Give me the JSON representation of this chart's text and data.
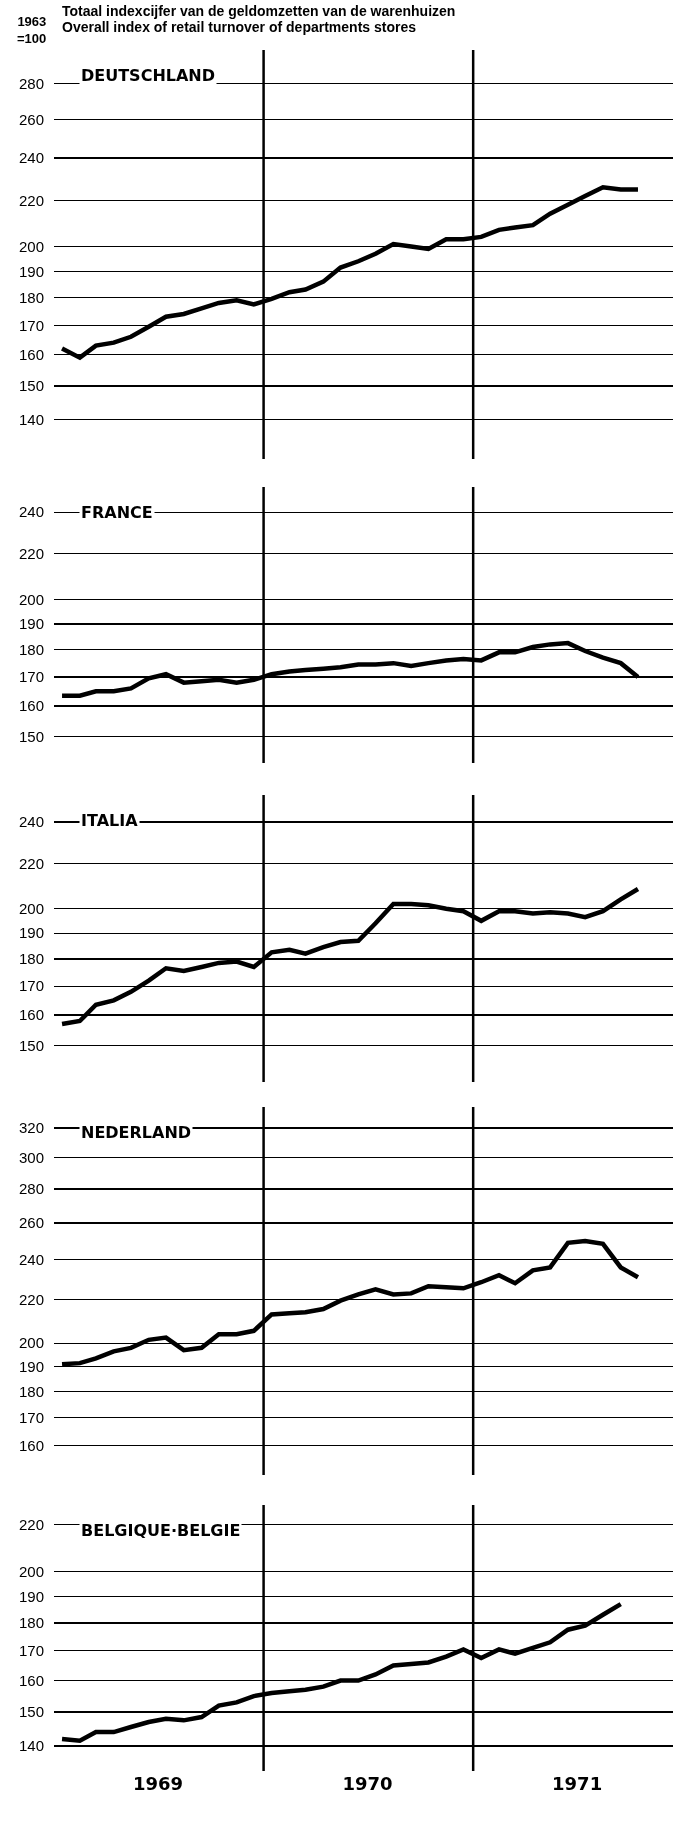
{
  "chart_data": [
    {
      "type": "line",
      "title": "DEUTSCHLAND",
      "ylabel": "1963\n=100",
      "annotations": [
        "Totaal indexcijfer van de geldomzetten van de warenhuizen",
        "Overall index of retail turnover of departments stores"
      ],
      "color": "#000000",
      "log": true,
      "grid": "y",
      "tick_labels": "y",
      "xlim": [
        "1969-01-01",
        "1971-12-15"
      ],
      "ylim": [
        129,
        300
      ],
      "yticks": [
        140,
        150,
        160,
        170,
        180,
        190,
        200,
        220,
        240,
        260,
        280
      ],
      "ref_lines": [
        {
          "axis": "x",
          "value": "1970-01-01"
        },
        {
          "axis": "x",
          "value": "1971-01-01"
        }
      ],
      "x": [
        "1969-01-15",
        "1969-02-15",
        "1969-03-15",
        "1969-04-15",
        "1969-05-15",
        "1969-06-15",
        "1969-07-15",
        "1969-08-15",
        "1969-09-15",
        "1969-10-15",
        "1969-11-15",
        "1969-12-15",
        "1970-01-15",
        "1970-02-15",
        "1970-03-15",
        "1970-04-15",
        "1970-05-15",
        "1970-06-15",
        "1970-07-15",
        "1970-08-15",
        "1970-09-15",
        "1970-10-15",
        "1970-11-15",
        "1970-12-15",
        "1971-01-15",
        "1971-02-15",
        "1971-03-15",
        "1971-04-15",
        "1971-05-15",
        "1971-06-15",
        "1971-07-15",
        "1971-08-15",
        "1971-09-15",
        "1971-10-15"
      ],
      "values": [
        162,
        159,
        163,
        164,
        166,
        169.5,
        173,
        174,
        176,
        178,
        179,
        177.5,
        179.5,
        182,
        183,
        186,
        191.5,
        194,
        197,
        201,
        200,
        199,
        203,
        203,
        204,
        207,
        208,
        209,
        214,
        218,
        222,
        226,
        225,
        225
      ]
    },
    {
      "type": "line",
      "title": "FRANCE",
      "color": "#000000",
      "log": true,
      "grid": "y",
      "tick_labels": "y",
      "xlim": [
        "1969-01-01",
        "1971-12-15"
      ],
      "ylim": [
        142,
        253
      ],
      "yticks": [
        150,
        160,
        170,
        180,
        190,
        200,
        220,
        240
      ],
      "ref_lines": [
        {
          "axis": "x",
          "value": "1970-01-01"
        },
        {
          "axis": "x",
          "value": "1971-01-01"
        }
      ],
      "x": [
        "1969-01-15",
        "1969-02-15",
        "1969-03-15",
        "1969-04-15",
        "1969-05-15",
        "1969-06-15",
        "1969-07-15",
        "1969-08-15",
        "1969-09-15",
        "1969-10-15",
        "1969-11-15",
        "1969-12-15",
        "1970-01-15",
        "1970-02-15",
        "1970-03-15",
        "1970-04-15",
        "1970-05-15",
        "1970-06-15",
        "1970-07-15",
        "1970-08-15",
        "1970-09-15",
        "1970-10-15",
        "1970-11-15",
        "1970-12-15",
        "1971-01-15",
        "1971-02-15",
        "1971-03-15",
        "1971-04-15",
        "1971-05-15",
        "1971-06-15",
        "1971-07-15",
        "1971-08-15",
        "1971-09-15",
        "1971-10-15"
      ],
      "values": [
        163.5,
        163.5,
        165,
        165,
        166,
        169.5,
        171,
        168,
        168.5,
        169,
        168,
        169,
        171,
        172,
        172.5,
        173,
        173.5,
        174.5,
        174.5,
        175,
        174,
        175,
        176,
        176.5,
        176,
        179,
        179,
        181,
        182,
        182.5,
        179.5,
        177,
        175,
        170
      ]
    },
    {
      "type": "line",
      "title": "ITALIA",
      "color": "#000000",
      "log": true,
      "grid": "y",
      "tick_labels": "y",
      "xlim": [
        "1969-01-01",
        "1971-12-15"
      ],
      "ylim": [
        139,
        254
      ],
      "yticks": [
        150,
        160,
        170,
        180,
        190,
        200,
        220,
        240
      ],
      "ref_lines": [
        {
          "axis": "x",
          "value": "1970-01-01"
        },
        {
          "axis": "x",
          "value": "1971-01-01"
        }
      ],
      "x": [
        "1969-01-15",
        "1969-02-15",
        "1969-03-15",
        "1969-04-15",
        "1969-05-15",
        "1969-06-15",
        "1969-07-15",
        "1969-08-15",
        "1969-09-15",
        "1969-10-15",
        "1969-11-15",
        "1969-12-15",
        "1970-01-15",
        "1970-02-15",
        "1970-03-15",
        "1970-04-15",
        "1970-05-15",
        "1970-06-15",
        "1970-07-15",
        "1970-08-15",
        "1970-09-15",
        "1970-10-15",
        "1970-11-15",
        "1970-12-15",
        "1971-01-15",
        "1971-02-15",
        "1971-03-15",
        "1971-04-15",
        "1971-05-15",
        "1971-06-15",
        "1971-07-15",
        "1971-08-15",
        "1971-09-15",
        "1971-10-15"
      ],
      "values": [
        157,
        158,
        163.5,
        165,
        168,
        172,
        176.5,
        175.5,
        177,
        178.5,
        179,
        177,
        182.5,
        183.5,
        182,
        184.5,
        186.5,
        187,
        194,
        202,
        202,
        201.5,
        200,
        199,
        195,
        199,
        199,
        198,
        198.5,
        198,
        196.5,
        199,
        204,
        208.5
      ]
    },
    {
      "type": "line",
      "title": "NEDERLAND",
      "color": "#000000",
      "log": true,
      "grid": "y",
      "tick_labels": "y",
      "xlim": [
        "1969-01-01",
        "1971-12-15"
      ],
      "ylim": [
        150,
        335
      ],
      "yticks": [
        160,
        170,
        180,
        190,
        200,
        220,
        240,
        260,
        280,
        300,
        320
      ],
      "ref_lines": [
        {
          "axis": "x",
          "value": "1970-01-01"
        },
        {
          "axis": "x",
          "value": "1971-01-01"
        }
      ],
      "x": [
        "1969-01-15",
        "1969-02-15",
        "1969-03-15",
        "1969-04-15",
        "1969-05-15",
        "1969-06-15",
        "1969-07-15",
        "1969-08-15",
        "1969-09-15",
        "1969-10-15",
        "1969-11-15",
        "1969-12-15",
        "1970-01-15",
        "1970-02-15",
        "1970-03-15",
        "1970-04-15",
        "1970-05-15",
        "1970-06-15",
        "1970-07-15",
        "1970-08-15",
        "1970-09-15",
        "1970-10-15",
        "1970-11-15",
        "1970-12-15",
        "1971-01-15",
        "1971-02-15",
        "1971-03-15",
        "1971-04-15",
        "1971-05-15",
        "1971-06-15",
        "1971-07-15",
        "1971-08-15",
        "1971-09-15",
        "1971-10-15"
      ],
      "values": [
        191,
        191.5,
        193.5,
        196.5,
        198,
        201.5,
        202.5,
        197,
        198,
        204,
        204,
        205.5,
        213,
        213.5,
        214,
        215.5,
        219.5,
        222.5,
        225,
        222.5,
        223,
        226.5,
        226,
        225.5,
        228.5,
        232,
        228,
        234.5,
        236,
        249,
        250,
        248.5,
        236,
        231
      ]
    },
    {
      "type": "line",
      "title": "BELGIQUE·BELGIE",
      "color": "#000000",
      "log": true,
      "grid": "y",
      "xlim": [
        "1969-01-01",
        "1971-12-15"
      ],
      "xticks": [
        {
          "value": "1969-07-01",
          "label": "1969"
        },
        {
          "value": "1970-07-01",
          "label": "1970"
        },
        {
          "value": "1971-07-01",
          "label": "1971"
        }
      ],
      "ylim": [
        133,
        229
      ],
      "yticks": [
        140,
        150,
        160,
        170,
        180,
        190,
        200,
        220
      ],
      "ref_lines": [
        {
          "axis": "x",
          "value": "1970-01-01"
        },
        {
          "axis": "x",
          "value": "1971-01-01"
        }
      ],
      "x": [
        "1969-01-15",
        "1969-02-15",
        "1969-03-15",
        "1969-04-15",
        "1969-05-15",
        "1969-06-15",
        "1969-07-15",
        "1969-08-15",
        "1969-09-15",
        "1969-10-15",
        "1969-11-15",
        "1969-12-15",
        "1970-01-15",
        "1970-02-15",
        "1970-03-15",
        "1970-04-15",
        "1970-05-15",
        "1970-06-15",
        "1970-07-15",
        "1970-08-15",
        "1970-09-15",
        "1970-10-15",
        "1970-11-15",
        "1970-12-15",
        "1971-01-15",
        "1971-02-15",
        "1971-03-15",
        "1971-04-15",
        "1971-05-15",
        "1971-06-15",
        "1971-07-15",
        "1971-08-15",
        "1971-09-15"
      ],
      "values": [
        142,
        141.5,
        144,
        144,
        145.5,
        147,
        148,
        147.5,
        148.5,
        152,
        153,
        155,
        156,
        156.5,
        157,
        158,
        160,
        160,
        162,
        165,
        165.5,
        166,
        168,
        170.5,
        167.5,
        170.5,
        169,
        171,
        173,
        177.5,
        179,
        183,
        187
      ]
    }
  ]
}
